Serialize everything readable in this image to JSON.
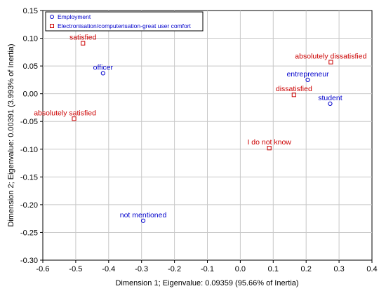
{
  "chart_data": {
    "type": "scatter",
    "xlabel": "Dimension 1; Eigenvalue: 0.09359 (95.66% of Inertia)",
    "ylabel": "Dimension 2; Eigenvalue: 0.00391 (3.993% of Inertia)",
    "xlim": [
      -0.6,
      0.4
    ],
    "ylim": [
      -0.3,
      0.15
    ],
    "x_ticks": [
      "-0.6",
      "-0.5",
      "-0.4",
      "-0.3",
      "-0.2",
      "-0.1",
      "0.0",
      "0.1",
      "0.2",
      "0.3",
      "0.4"
    ],
    "y_ticks": [
      "0.15",
      "0.10",
      "0.05",
      "0.00",
      "-0.05",
      "-0.10",
      "-0.15",
      "-0.20",
      "-0.25",
      "-0.30"
    ],
    "x_tick_values": [
      -0.6,
      -0.5,
      -0.4,
      -0.3,
      -0.2,
      -0.1,
      0.0,
      0.1,
      0.2,
      0.3,
      0.4
    ],
    "y_tick_values": [
      0.15,
      0.1,
      0.05,
      0.0,
      -0.05,
      -0.1,
      -0.15,
      -0.2,
      -0.25,
      -0.3
    ],
    "grid": true,
    "legend_position": "top-left",
    "series": [
      {
        "name": "Employment",
        "marker": "circle",
        "color": "#0000cc",
        "points": [
          {
            "label": "officer",
            "x": -0.417,
            "y": 0.037
          },
          {
            "label": "entrepreneur",
            "x": 0.205,
            "y": 0.025
          },
          {
            "label": "student",
            "x": 0.273,
            "y": -0.018
          },
          {
            "label": "not mentioned",
            "x": -0.295,
            "y": -0.229
          }
        ]
      },
      {
        "name": "Electronisation/computerisation-great user comfort",
        "marker": "square",
        "color": "#cc0000",
        "points": [
          {
            "label": "satisfied",
            "x": -0.478,
            "y": 0.091
          },
          {
            "label": "absolutely dissatisfied",
            "x": 0.275,
            "y": 0.057
          },
          {
            "label": "dissatisfied",
            "x": 0.163,
            "y": -0.002
          },
          {
            "label": "absolutely satisfied",
            "x": -0.505,
            "y": -0.045
          },
          {
            "label": "I do not know",
            "x": 0.088,
            "y": -0.098
          }
        ]
      }
    ]
  }
}
